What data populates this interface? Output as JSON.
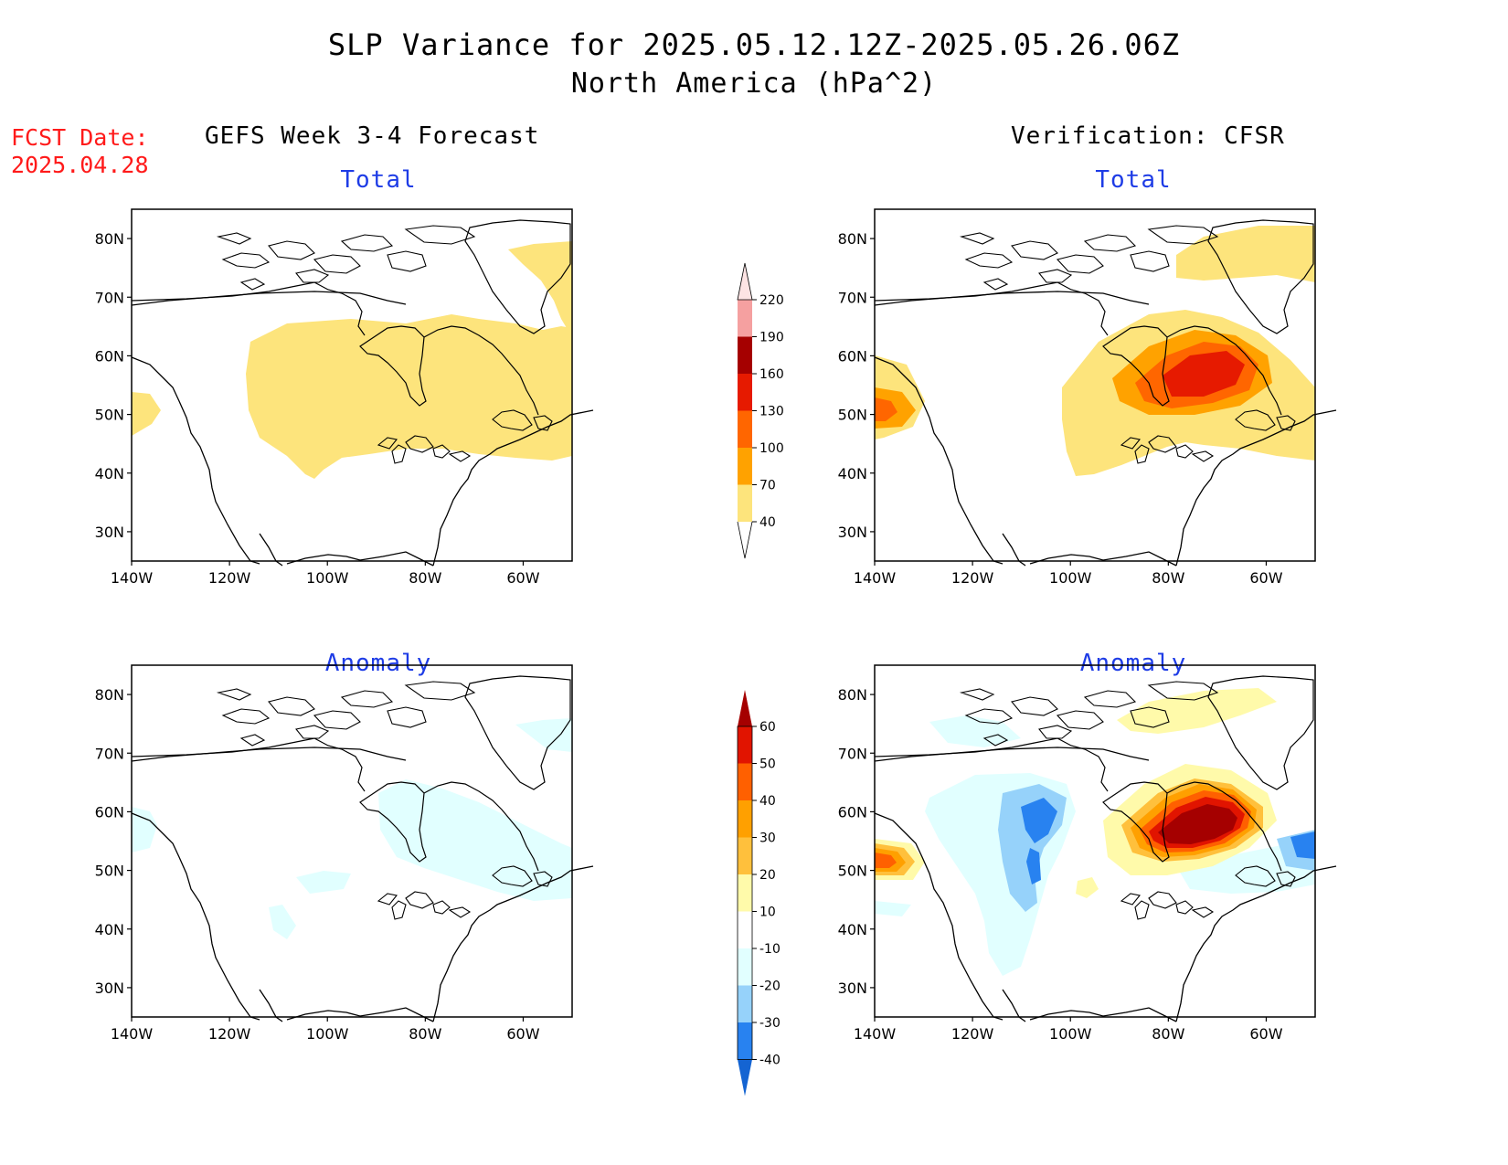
{
  "title": {
    "line1": "SLP Variance for 2025.05.12.12Z-2025.05.26.06Z",
    "line2": "North America (hPa^2)"
  },
  "fcst_date": {
    "label": "FCST Date:",
    "value": "2025.04.28"
  },
  "columns": {
    "left": "GEFS Week 3-4 Forecast",
    "right": "Verification: CFSR"
  },
  "panel_titles": {
    "total": "Total",
    "anomaly": "Anomaly"
  },
  "axes": {
    "lat_ticks": [
      "80N",
      "70N",
      "60N",
      "50N",
      "40N",
      "30N"
    ],
    "lon_ticks": [
      "140W",
      "120W",
      "100W",
      "80W",
      "60W"
    ],
    "lon_range": [
      -140,
      -50
    ],
    "lat_range": [
      25,
      85
    ]
  },
  "colorbars": {
    "total": {
      "labels": [
        "40",
        "70",
        "100",
        "130",
        "160",
        "190",
        "220"
      ],
      "colors": [
        "#fde47c",
        "#ffa200",
        "#ff6600",
        "#e61a00",
        "#a50000",
        "#f5a0a0",
        "#fde4e4"
      ]
    },
    "anomaly": {
      "labels": [
        "-40",
        "-30",
        "-20",
        "-10",
        "10",
        "20",
        "30",
        "40",
        "50",
        "60"
      ],
      "colors": [
        "#1464d2",
        "#2882f0",
        "#96d2fa",
        "#e1ffff",
        "#ffffff",
        "#fffaaa",
        "#ffc03c",
        "#ffa000",
        "#ff6000",
        "#e11400",
        "#a50000"
      ]
    }
  },
  "colors": {
    "title_red": "#ff1a1a",
    "panel_title_blue": "#1e3ce6"
  }
}
